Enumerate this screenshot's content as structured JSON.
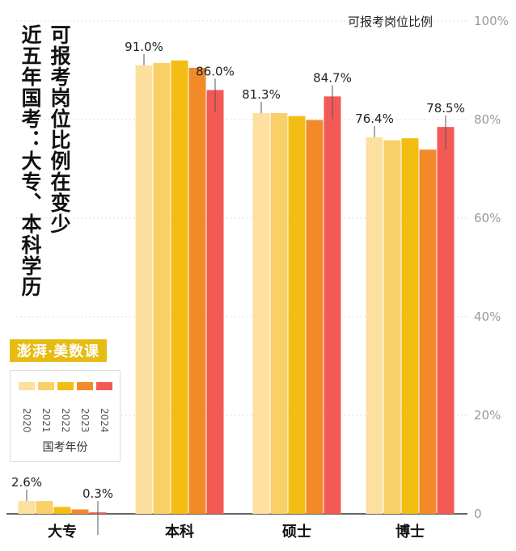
{
  "title_line1": "可报考岗位比例在变少",
  "title_line2": "近五年国考：大专、本科学历",
  "logo_text": "澎湃·美数课",
  "legend": {
    "years": [
      "2020",
      "2021",
      "2022",
      "2023",
      "2024"
    ],
    "caption": "国考年份",
    "colors": [
      "#fde0a0",
      "#f9d068",
      "#f3bd14",
      "#f28a2a",
      "#f35a56"
    ]
  },
  "chart_data": {
    "type": "bar",
    "ylabel": "可报考岗位比例",
    "ylim": [
      0,
      100
    ],
    "yticks": [
      "0",
      "20%",
      "40%",
      "60%",
      "80%",
      "100%"
    ],
    "categories": [
      "大专",
      "本科",
      "硕士",
      "博士"
    ],
    "series": [
      {
        "name": "2020",
        "values": [
          2.6,
          91.0,
          81.3,
          76.4
        ]
      },
      {
        "name": "2021",
        "values": [
          2.6,
          91.5,
          81.3,
          75.8
        ]
      },
      {
        "name": "2022",
        "values": [
          1.4,
          92.0,
          80.7,
          76.2
        ]
      },
      {
        "name": "2023",
        "values": [
          0.9,
          90.5,
          79.9,
          73.9
        ]
      },
      {
        "name": "2024",
        "values": [
          0.3,
          86.0,
          84.7,
          78.5
        ]
      }
    ],
    "data_labels": [
      {
        "category": "大专",
        "series": "2020",
        "text": "2.6%"
      },
      {
        "category": "大专",
        "series": "2024",
        "text": "0.3%"
      },
      {
        "category": "本科",
        "series": "2020",
        "text": "91.0%"
      },
      {
        "category": "本科",
        "series": "2024",
        "text": "86.0%"
      },
      {
        "category": "硕士",
        "series": "2020",
        "text": "81.3%"
      },
      {
        "category": "硕士",
        "series": "2024",
        "text": "84.7%"
      },
      {
        "category": "博士",
        "series": "2020",
        "text": "76.4%"
      },
      {
        "category": "博士",
        "series": "2024",
        "text": "78.5%"
      }
    ],
    "grid": true
  }
}
